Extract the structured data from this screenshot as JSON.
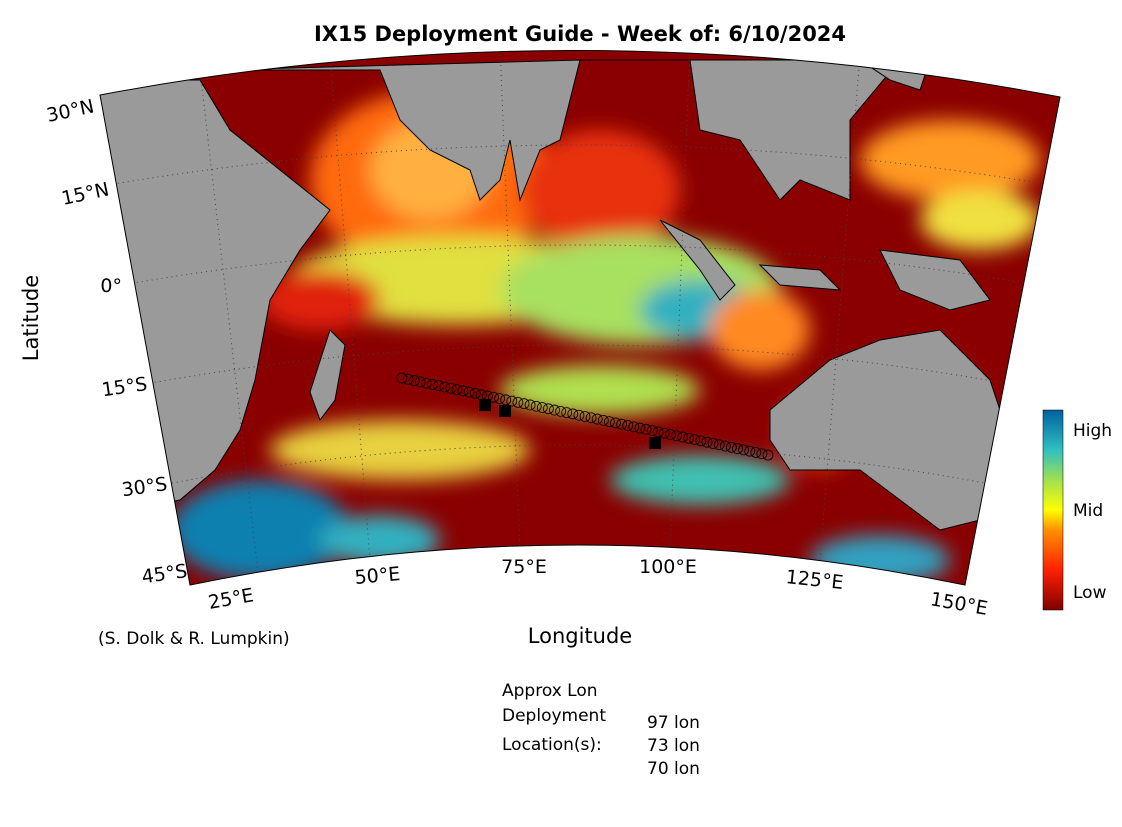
{
  "title": "IX15 Deployment Guide - Week of: 6/10/2024",
  "y_axis_label": "Latitude",
  "x_axis_label": "Longitude",
  "latitude_ticks": [
    "30°N",
    "15°N",
    "0°",
    "15°S",
    "30°S",
    "45°S"
  ],
  "longitude_ticks": [
    "25°E",
    "50°E",
    "75°E",
    "100°E",
    "125°E",
    "150°E"
  ],
  "colorbar_labels": [
    "High",
    "Mid",
    "Low"
  ],
  "credit": "(S. Dolk & R. Lumpkin)",
  "deployment": {
    "heading": [
      "Approx Lon",
      "Deployment",
      "Location(s):"
    ],
    "locations": [
      "97 lon",
      "73 lon",
      "70 lon"
    ]
  }
}
